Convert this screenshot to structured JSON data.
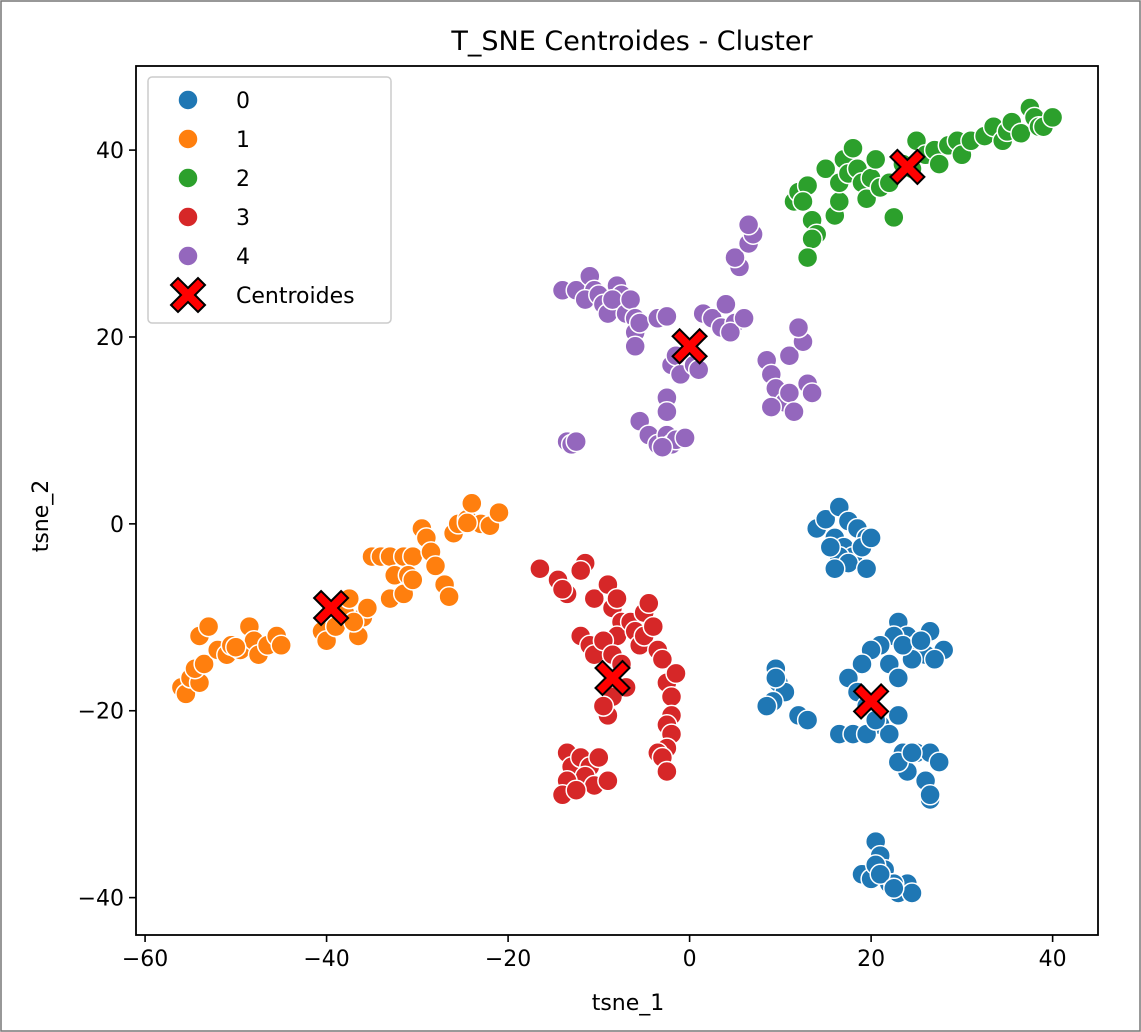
{
  "chart_data": {
    "type": "scatter",
    "title": "T_SNE Centroides - Cluster",
    "xlabel": "tsne_1",
    "ylabel": "tsne_2",
    "xlim": [
      -61,
      45
    ],
    "ylim": [
      -44,
      49
    ],
    "x_ticks": [
      -60,
      -40,
      -20,
      0,
      20,
      40
    ],
    "y_ticks": [
      -40,
      -20,
      0,
      20,
      40
    ],
    "x_tick_labels": [
      "−60",
      "−40",
      "−20",
      "0",
      "20",
      "40"
    ],
    "y_tick_labels": [
      "−40",
      "−20",
      "0",
      "20",
      "40"
    ],
    "grid": false,
    "legend_position": "upper-left",
    "series": [
      {
        "name": "0",
        "color": "#1f77b4",
        "marker": "circle",
        "points": [
          [
            14,
            -0.5
          ],
          [
            15,
            0.5
          ],
          [
            16.5,
            1.8
          ],
          [
            17.5,
            0.3
          ],
          [
            18.5,
            -0.5
          ],
          [
            19.5,
            -1.5
          ],
          [
            16,
            -1.5
          ],
          [
            17,
            -2.5
          ],
          [
            18,
            -3.5
          ],
          [
            19,
            -2.5
          ],
          [
            20,
            -1.5
          ],
          [
            16.5,
            -3.5
          ],
          [
            17.5,
            -4.2
          ],
          [
            19.5,
            -4.8
          ],
          [
            16,
            -4.8
          ],
          [
            15.5,
            -2.5
          ],
          [
            23,
            -10.5
          ],
          [
            24,
            -12
          ],
          [
            25,
            -13
          ],
          [
            26.5,
            -11.5
          ],
          [
            28,
            -13.5
          ],
          [
            26,
            -14
          ],
          [
            24.5,
            -14.5
          ],
          [
            22.5,
            -12
          ],
          [
            21,
            -13
          ],
          [
            22,
            -15
          ],
          [
            20,
            -13.5
          ],
          [
            19,
            -15
          ],
          [
            23.5,
            -13
          ],
          [
            25.5,
            -12.5
          ],
          [
            27,
            -14.5
          ],
          [
            23,
            -16.5
          ],
          [
            17.5,
            -16.5
          ],
          [
            18.5,
            -18
          ],
          [
            19.5,
            -19.5
          ],
          [
            21,
            -21.5
          ],
          [
            23,
            -20.5
          ],
          [
            22,
            -22.5
          ],
          [
            23.5,
            -24.5
          ],
          [
            24,
            -26.5
          ],
          [
            25,
            -24.5
          ],
          [
            26.5,
            -24.5
          ],
          [
            27.5,
            -25.5
          ],
          [
            26,
            -27.5
          ],
          [
            26.5,
            -29.5
          ],
          [
            23,
            -25.5
          ],
          [
            16.5,
            -22.5
          ],
          [
            18,
            -22.5
          ],
          [
            19.5,
            -22.5
          ],
          [
            20.5,
            -21
          ],
          [
            26.5,
            -29
          ],
          [
            24.5,
            -24.5
          ],
          [
            9.5,
            -15.5
          ],
          [
            9.8,
            -17
          ],
          [
            10.5,
            -18
          ],
          [
            9.2,
            -19
          ],
          [
            8.5,
            -19.5
          ],
          [
            12,
            -20.5
          ],
          [
            13,
            -21
          ],
          [
            9.5,
            -16.5
          ],
          [
            20.5,
            -34
          ],
          [
            21,
            -35.5
          ],
          [
            21.5,
            -37
          ],
          [
            19,
            -37.5
          ],
          [
            20,
            -38
          ],
          [
            22,
            -38.5
          ],
          [
            23,
            -39.5
          ],
          [
            24,
            -38.5
          ],
          [
            24.5,
            -39.5
          ],
          [
            22.5,
            -38.5
          ],
          [
            20.5,
            -36.5
          ],
          [
            21,
            -37.5
          ],
          [
            22.5,
            -39
          ]
        ]
      },
      {
        "name": "1",
        "color": "#ff7f0e",
        "marker": "circle",
        "points": [
          [
            -56,
            -17.5
          ],
          [
            -55.5,
            -18.2
          ],
          [
            -55,
            -16.5
          ],
          [
            -54,
            -17
          ],
          [
            -54.5,
            -15.5
          ],
          [
            -53.5,
            -15
          ],
          [
            -54,
            -12
          ],
          [
            -53,
            -11
          ],
          [
            -52,
            -13.5
          ],
          [
            -51,
            -14
          ],
          [
            -50.5,
            -13
          ],
          [
            -49.5,
            -13.5
          ],
          [
            -48.5,
            -11
          ],
          [
            -48,
            -12.5
          ],
          [
            -47.5,
            -14
          ],
          [
            -46.5,
            -13
          ],
          [
            -45.5,
            -12
          ],
          [
            -45,
            -13
          ],
          [
            -50,
            -13.2
          ],
          [
            -40.5,
            -11.5
          ],
          [
            -40,
            -12.5
          ],
          [
            -39,
            -11
          ],
          [
            -38,
            -9.5
          ],
          [
            -37.5,
            -8
          ],
          [
            -36.5,
            -12
          ],
          [
            -36,
            -10
          ],
          [
            -35.5,
            -9
          ],
          [
            -37,
            -10.5
          ],
          [
            -35,
            -3.5
          ],
          [
            -34,
            -3.5
          ],
          [
            -33,
            -3.5
          ],
          [
            -31.5,
            -3.5
          ],
          [
            -30.5,
            -3.5
          ],
          [
            -32.5,
            -5.5
          ],
          [
            -31,
            -5.5
          ],
          [
            -33,
            -8
          ],
          [
            -31.5,
            -7.5
          ],
          [
            -30.5,
            -6
          ],
          [
            -29.5,
            -0.5
          ],
          [
            -29,
            -1.5
          ],
          [
            -28.5,
            -3
          ],
          [
            -28,
            -4.5
          ],
          [
            -27,
            -6.5
          ],
          [
            -26.5,
            -7.8
          ],
          [
            -26,
            -1
          ],
          [
            -25.5,
            0
          ],
          [
            -24.5,
            0.5
          ],
          [
            -24,
            2.2
          ],
          [
            -23,
            0
          ],
          [
            -22,
            -0.2
          ],
          [
            -21,
            1.2
          ],
          [
            -24.5,
            0.1
          ]
        ]
      },
      {
        "name": "2",
        "color": "#2ca02c",
        "marker": "circle",
        "points": [
          [
            11.5,
            34.5
          ],
          [
            12,
            35.5
          ],
          [
            13,
            36.2
          ],
          [
            12.5,
            34.5
          ],
          [
            13.5,
            32.5
          ],
          [
            14,
            31
          ],
          [
            13.5,
            30.5
          ],
          [
            13,
            28.5
          ],
          [
            15,
            38
          ],
          [
            16,
            33
          ],
          [
            16.5,
            34.5
          ],
          [
            16.5,
            36.5
          ],
          [
            17,
            39
          ],
          [
            17.5,
            37.5
          ],
          [
            18,
            40.2
          ],
          [
            18.5,
            38
          ],
          [
            19,
            36.5
          ],
          [
            19.5,
            34.8
          ],
          [
            20,
            37
          ],
          [
            20.5,
            39
          ],
          [
            21,
            36
          ],
          [
            22,
            36.5
          ],
          [
            22.5,
            32.8
          ],
          [
            23.5,
            38.5
          ],
          [
            24.5,
            38
          ],
          [
            25,
            41
          ],
          [
            26,
            39.5
          ],
          [
            27,
            40
          ],
          [
            27.5,
            38.5
          ],
          [
            28.5,
            40.5
          ],
          [
            29.5,
            41
          ],
          [
            30,
            39.5
          ],
          [
            31,
            41
          ],
          [
            32.5,
            41.5
          ],
          [
            33.5,
            42.5
          ],
          [
            34.5,
            41
          ],
          [
            35,
            42
          ],
          [
            35.5,
            43
          ],
          [
            36.5,
            41.8
          ],
          [
            37.5,
            44.5
          ],
          [
            38,
            43.5
          ],
          [
            38.5,
            42.5
          ],
          [
            39,
            42.5
          ],
          [
            40,
            43.5
          ]
        ]
      },
      {
        "name": "3",
        "color": "#d62728",
        "marker": "circle",
        "points": [
          [
            -16.5,
            -4.8
          ],
          [
            -14.5,
            -6
          ],
          [
            -13.5,
            -7.5
          ],
          [
            -14,
            -7
          ],
          [
            -11.5,
            -4.2
          ],
          [
            -12,
            -5
          ],
          [
            -10.5,
            -8
          ],
          [
            -9,
            -6.5
          ],
          [
            -8.5,
            -9
          ],
          [
            -8,
            -8
          ],
          [
            -7.5,
            -10.5
          ],
          [
            -8,
            -12
          ],
          [
            -6.5,
            -10.5
          ],
          [
            -6,
            -11.5
          ],
          [
            -5.5,
            -13
          ],
          [
            -5,
            -9.5
          ],
          [
            -4.5,
            -8.5
          ],
          [
            -5,
            -12
          ],
          [
            -4,
            -11
          ],
          [
            -3.5,
            -13.5
          ],
          [
            -3,
            -14.5
          ],
          [
            -2.5,
            -17
          ],
          [
            -2,
            -18.5
          ],
          [
            -2,
            -20.5
          ],
          [
            -2.5,
            -21.5
          ],
          [
            -2,
            -22.5
          ],
          [
            -2.5,
            -24
          ],
          [
            -3.5,
            -24.5
          ],
          [
            -3,
            -25
          ],
          [
            -2.5,
            -26.5
          ],
          [
            -1.5,
            -16
          ],
          [
            -12,
            -12
          ],
          [
            -11,
            -13
          ],
          [
            -10.5,
            -14
          ],
          [
            -9.5,
            -12.5
          ],
          [
            -8.5,
            -14
          ],
          [
            -7.5,
            -15
          ],
          [
            -7,
            -17.5
          ],
          [
            -8.5,
            -18.5
          ],
          [
            -9,
            -20.5
          ],
          [
            -9.5,
            -19.5
          ],
          [
            -13.5,
            -24.5
          ],
          [
            -13,
            -26
          ],
          [
            -12,
            -25
          ],
          [
            -11,
            -26
          ],
          [
            -10,
            -25
          ],
          [
            -11.5,
            -27
          ],
          [
            -10.5,
            -28
          ],
          [
            -9,
            -27.5
          ],
          [
            -13.5,
            -27.5
          ],
          [
            -14,
            -29
          ],
          [
            -12.5,
            -28.5
          ]
        ]
      },
      {
        "name": "4",
        "color": "#9467bd",
        "marker": "circle",
        "points": [
          [
            -14,
            25
          ],
          [
            -12.5,
            25
          ],
          [
            -11,
            26.5
          ],
          [
            -10.5,
            25
          ],
          [
            -11.5,
            24
          ],
          [
            -10,
            24.5
          ],
          [
            -9.5,
            23.5
          ],
          [
            -9,
            22.5
          ],
          [
            -8,
            25.5
          ],
          [
            -7.5,
            24.5
          ],
          [
            -8.5,
            24
          ],
          [
            -7,
            22.5
          ],
          [
            -6.5,
            24
          ],
          [
            -6,
            22
          ],
          [
            -6,
            20.5
          ],
          [
            -5.5,
            21.5
          ],
          [
            -6,
            19
          ],
          [
            -3.5,
            22
          ],
          [
            -2.5,
            22.2
          ],
          [
            -2,
            17
          ],
          [
            -1.5,
            18
          ],
          [
            -1,
            16
          ],
          [
            -2.5,
            13.5
          ],
          [
            -2.5,
            12
          ],
          [
            -5.5,
            11
          ],
          [
            -4.5,
            9.5
          ],
          [
            -3.5,
            8.5
          ],
          [
            -2.5,
            9.5
          ],
          [
            -2,
            8.5
          ],
          [
            -1.5,
            9
          ],
          [
            -3,
            8.2
          ],
          [
            -0.5,
            9.2
          ],
          [
            -13.5,
            8.8
          ],
          [
            -13,
            8.5
          ],
          [
            -12.5,
            8.8
          ],
          [
            0.5,
            17
          ],
          [
            1,
            16.5
          ],
          [
            1.5,
            22.5
          ],
          [
            2.5,
            22
          ],
          [
            3.5,
            21
          ],
          [
            4,
            23.5
          ],
          [
            5,
            21.5
          ],
          [
            4.5,
            20.5
          ],
          [
            6,
            22
          ],
          [
            5.5,
            27.5
          ],
          [
            5,
            28.5
          ],
          [
            6.5,
            30
          ],
          [
            7,
            31
          ],
          [
            6.5,
            32
          ],
          [
            8.5,
            17.5
          ],
          [
            9,
            16
          ],
          [
            9.5,
            14.5
          ],
          [
            10.5,
            13
          ],
          [
            9,
            12.5
          ],
          [
            11,
            14
          ],
          [
            11.5,
            12
          ],
          [
            11,
            18
          ],
          [
            12.5,
            19.5
          ],
          [
            12,
            21
          ],
          [
            13,
            15
          ],
          [
            13.5,
            14
          ]
        ]
      }
    ],
    "centroids": {
      "name": "Centroides",
      "color": "#ff0000",
      "marker": "X",
      "points": [
        [
          20,
          -19
        ],
        [
          -39.5,
          -9
        ],
        [
          24,
          38.2
        ],
        [
          -8.5,
          -16.5
        ],
        [
          0,
          19
        ]
      ]
    }
  }
}
